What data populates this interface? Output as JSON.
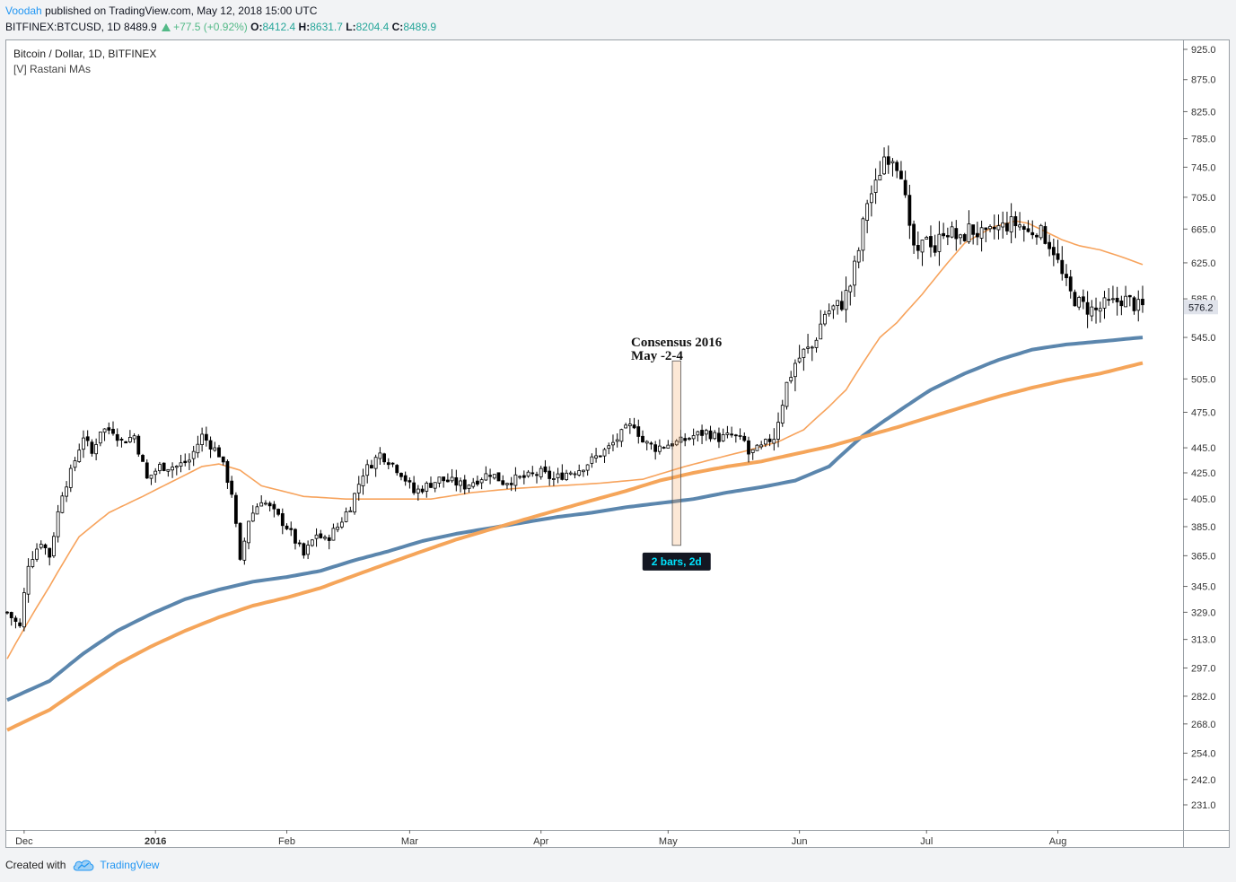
{
  "header": {
    "author": "Voodah",
    "published_text": "published on TradingView.com, May 12, 2018 15:00 UTC"
  },
  "quote": {
    "symbol": "BITFINEX:BTCUSD, 1D",
    "last": "8489.9",
    "change": "+77.5 (+0.92%)",
    "o_label": "O:",
    "o": "8412.4",
    "h_label": "H:",
    "h": "8631.7",
    "l_label": "L:",
    "l": "8204.4",
    "c_label": "C:",
    "c": "8489.9"
  },
  "legend": {
    "title": "Bitcoin / Dollar, 1D, BITFINEX",
    "indicator": "[V] Rastani MAs"
  },
  "footer": {
    "created_with": "Created with",
    "brand": "TradingView"
  },
  "colors": {
    "candle": "#000000",
    "ma_thin_orange": "#f7a35c",
    "ma_thick_orange": "#f5a55a",
    "ma_blue": "#5b86ad",
    "label_bg": "#131722",
    "label_text": "#00e5ff"
  },
  "chart_data": {
    "type": "candlestick",
    "title": "Bitcoin / Dollar, 1D, BITFINEX",
    "y_axis": {
      "scale": "log",
      "ticks": [
        "925.0",
        "875.0",
        "825.0",
        "785.0",
        "745.0",
        "705.0",
        "665.0",
        "625.0",
        "585.0",
        "545.0",
        "505.0",
        "475.0",
        "445.0",
        "425.0",
        "405.0",
        "385.0",
        "365.0",
        "345.0",
        "329.0",
        "313.0",
        "297.0",
        "282.0",
        "268.0",
        "254.0",
        "242.0",
        "231.0"
      ],
      "last_price_label": "576.2",
      "last_price": 576.2
    },
    "x_axis": {
      "labels": [
        {
          "text": "Dec",
          "day": 4
        },
        {
          "text": "2016",
          "day": 35,
          "bold": true
        },
        {
          "text": "Feb",
          "day": 66
        },
        {
          "text": "Mar",
          "day": 95
        },
        {
          "text": "Apr",
          "day": 126
        },
        {
          "text": "May",
          "day": 156
        },
        {
          "text": "Jun",
          "day": 187
        },
        {
          "text": "Jul",
          "day": 217
        },
        {
          "text": "Aug",
          "day": 248
        }
      ]
    },
    "price_anchors": [
      [
        0,
        329
      ],
      [
        3,
        320
      ],
      [
        5,
        360
      ],
      [
        8,
        375
      ],
      [
        10,
        365
      ],
      [
        13,
        410
      ],
      [
        15,
        425
      ],
      [
        18,
        455
      ],
      [
        20,
        440
      ],
      [
        22,
        460
      ],
      [
        25,
        460
      ],
      [
        27,
        450
      ],
      [
        30,
        455
      ],
      [
        33,
        420
      ],
      [
        36,
        430
      ],
      [
        40,
        430
      ],
      [
        43,
        435
      ],
      [
        46,
        455
      ],
      [
        50,
        440
      ],
      [
        53,
        410
      ],
      [
        55,
        360
      ],
      [
        57,
        390
      ],
      [
        60,
        405
      ],
      [
        63,
        395
      ],
      [
        66,
        385
      ],
      [
        68,
        375
      ],
      [
        70,
        365
      ],
      [
        73,
        380
      ],
      [
        75,
        375
      ],
      [
        78,
        385
      ],
      [
        81,
        400
      ],
      [
        84,
        425
      ],
      [
        88,
        440
      ],
      [
        90,
        435
      ],
      [
        93,
        425
      ],
      [
        96,
        410
      ],
      [
        99,
        415
      ],
      [
        102,
        420
      ],
      [
        105,
        418
      ],
      [
        108,
        415
      ],
      [
        111,
        420
      ],
      [
        114,
        425
      ],
      [
        117,
        418
      ],
      [
        120,
        420
      ],
      [
        123,
        422
      ],
      [
        126,
        425
      ],
      [
        129,
        420
      ],
      [
        132,
        425
      ],
      [
        135,
        428
      ],
      [
        138,
        435
      ],
      [
        142,
        445
      ],
      [
        146,
        460
      ],
      [
        148,
        465
      ],
      [
        150,
        450
      ],
      [
        153,
        445
      ],
      [
        156,
        448
      ],
      [
        159,
        450
      ],
      [
        162,
        455
      ],
      [
        165,
        458
      ],
      [
        168,
        453
      ],
      [
        171,
        455
      ],
      [
        174,
        450
      ],
      [
        175,
        440
      ],
      [
        178,
        445
      ],
      [
        181,
        455
      ],
      [
        182,
        470
      ],
      [
        184,
        500
      ],
      [
        186,
        520
      ],
      [
        188,
        530
      ],
      [
        190,
        535
      ],
      [
        193,
        570
      ],
      [
        195,
        575
      ],
      [
        197,
        580
      ],
      [
        199,
        600
      ],
      [
        201,
        640
      ],
      [
        203,
        700
      ],
      [
        205,
        720
      ],
      [
        207,
        760
      ],
      [
        209,
        760
      ],
      [
        211,
        740
      ],
      [
        213,
        660
      ],
      [
        215,
        630
      ],
      [
        217,
        660
      ],
      [
        219,
        640
      ],
      [
        221,
        665
      ],
      [
        223,
        660
      ],
      [
        225,
        650
      ],
      [
        227,
        665
      ],
      [
        229,
        660
      ],
      [
        231,
        655
      ],
      [
        233,
        665
      ],
      [
        235,
        668
      ],
      [
        237,
        672
      ],
      [
        239,
        670
      ],
      [
        241,
        660
      ],
      [
        243,
        665
      ],
      [
        245,
        655
      ],
      [
        247,
        640
      ],
      [
        249,
        610
      ],
      [
        251,
        590
      ],
      [
        253,
        580
      ],
      [
        255,
        575
      ],
      [
        257,
        572
      ],
      [
        259,
        578
      ],
      [
        261,
        580
      ],
      [
        263,
        585
      ],
      [
        265,
        582
      ],
      [
        267,
        576
      ],
      [
        268,
        576
      ]
    ],
    "series": [
      {
        "name": "MA fast (thin orange)",
        "anchors": [
          [
            0,
            302
          ],
          [
            10,
            345
          ],
          [
            17,
            378
          ],
          [
            24,
            395
          ],
          [
            32,
            407
          ],
          [
            40,
            420
          ],
          [
            46,
            430
          ],
          [
            50,
            432
          ],
          [
            55,
            427
          ],
          [
            60,
            415
          ],
          [
            70,
            407
          ],
          [
            80,
            405
          ],
          [
            88,
            405
          ],
          [
            100,
            405
          ],
          [
            110,
            410
          ],
          [
            120,
            413
          ],
          [
            130,
            415
          ],
          [
            140,
            417
          ],
          [
            150,
            420
          ],
          [
            160,
            430
          ],
          [
            168,
            437
          ],
          [
            175,
            443
          ],
          [
            182,
            450
          ],
          [
            188,
            460
          ],
          [
            194,
            480
          ],
          [
            198,
            495
          ],
          [
            202,
            520
          ],
          [
            206,
            545
          ],
          [
            210,
            560
          ],
          [
            216,
            590
          ],
          [
            222,
            625
          ],
          [
            226,
            648
          ],
          [
            230,
            660
          ],
          [
            233,
            668
          ],
          [
            236,
            672
          ],
          [
            238,
            675
          ],
          [
            241,
            672
          ],
          [
            245,
            662
          ],
          [
            249,
            652
          ],
          [
            253,
            645
          ],
          [
            258,
            640
          ],
          [
            263,
            632
          ],
          [
            268,
            623
          ]
        ]
      },
      {
        "name": "MA slow (blue)",
        "anchors": [
          [
            0,
            280
          ],
          [
            10,
            290
          ],
          [
            18,
            305
          ],
          [
            26,
            318
          ],
          [
            34,
            328
          ],
          [
            42,
            337
          ],
          [
            50,
            343
          ],
          [
            58,
            348
          ],
          [
            66,
            351
          ],
          [
            74,
            355
          ],
          [
            82,
            362
          ],
          [
            90,
            368
          ],
          [
            98,
            375
          ],
          [
            106,
            380
          ],
          [
            114,
            384
          ],
          [
            122,
            388
          ],
          [
            130,
            392
          ],
          [
            138,
            395
          ],
          [
            146,
            399
          ],
          [
            154,
            402
          ],
          [
            162,
            405
          ],
          [
            170,
            410
          ],
          [
            178,
            414
          ],
          [
            186,
            419
          ],
          [
            194,
            430
          ],
          [
            202,
            455
          ],
          [
            210,
            475
          ],
          [
            218,
            495
          ],
          [
            226,
            510
          ],
          [
            234,
            523
          ],
          [
            242,
            533
          ],
          [
            250,
            538
          ],
          [
            258,
            541
          ],
          [
            268,
            545
          ]
        ]
      },
      {
        "name": "MA slow (thick orange)",
        "anchors": [
          [
            0,
            265
          ],
          [
            10,
            275
          ],
          [
            18,
            287
          ],
          [
            26,
            299
          ],
          [
            34,
            309
          ],
          [
            42,
            318
          ],
          [
            50,
            326
          ],
          [
            58,
            333
          ],
          [
            66,
            338
          ],
          [
            74,
            344
          ],
          [
            82,
            352
          ],
          [
            90,
            360
          ],
          [
            98,
            368
          ],
          [
            106,
            376
          ],
          [
            114,
            383
          ],
          [
            122,
            390
          ],
          [
            130,
            397
          ],
          [
            138,
            404
          ],
          [
            146,
            411
          ],
          [
            154,
            419
          ],
          [
            162,
            425
          ],
          [
            170,
            430
          ],
          [
            178,
            434
          ],
          [
            186,
            440
          ],
          [
            194,
            446
          ],
          [
            202,
            454
          ],
          [
            210,
            462
          ],
          [
            218,
            471
          ],
          [
            226,
            480
          ],
          [
            234,
            489
          ],
          [
            242,
            497
          ],
          [
            250,
            504
          ],
          [
            258,
            510
          ],
          [
            268,
            520
          ]
        ]
      }
    ],
    "annotation": {
      "title": "Consensus 2016",
      "subtitle": "May -2-4",
      "day_start": 157,
      "day_end": 159,
      "range_label": "2 bars, 2d"
    }
  }
}
